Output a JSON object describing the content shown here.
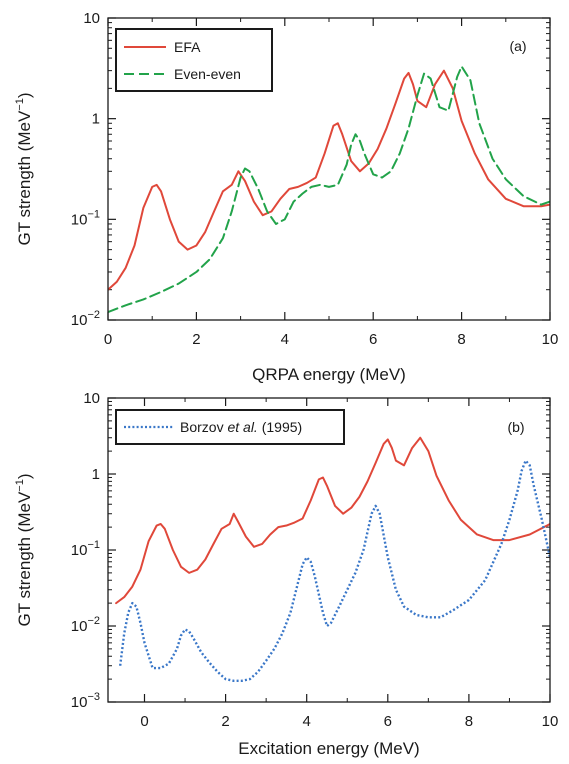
{
  "chart_data": [
    {
      "type": "line",
      "panel_label": "(a)",
      "xlabel": "QRPA energy (MeV)",
      "ylabel": "GT strength (MeV",
      "ylabel_sup": "−1",
      "ylabel_close": ")",
      "xlim": [
        0,
        10
      ],
      "ylim": [
        0.01,
        10
      ],
      "yscale": "log",
      "grid": false,
      "legend_position": "top-left",
      "x_ticks": [
        {
          "value": 0,
          "label": "0"
        },
        {
          "value": 2,
          "label": "2"
        },
        {
          "value": 4,
          "label": "4"
        },
        {
          "value": 6,
          "label": "6"
        },
        {
          "value": 8,
          "label": "8"
        },
        {
          "value": 10,
          "label": "10"
        }
      ],
      "y_ticks": [
        {
          "value": 0.01,
          "base": "10",
          "exp": "−2"
        },
        {
          "value": 0.1,
          "base": "10",
          "exp": "−1"
        },
        {
          "value": 1,
          "base": "1",
          "exp": ""
        },
        {
          "value": 10,
          "base": "10",
          "exp": ""
        }
      ],
      "series": [
        {
          "name": "EFA",
          "color": "#e0483a",
          "style": "solid",
          "x": [
            0,
            0.2,
            0.4,
            0.6,
            0.8,
            1.0,
            1.1,
            1.2,
            1.4,
            1.6,
            1.8,
            2.0,
            2.2,
            2.4,
            2.6,
            2.8,
            2.95,
            3.1,
            3.3,
            3.5,
            3.7,
            3.9,
            4.1,
            4.3,
            4.5,
            4.7,
            4.9,
            5.1,
            5.2,
            5.3,
            5.5,
            5.7,
            5.9,
            6.1,
            6.3,
            6.5,
            6.7,
            6.8,
            6.9,
            7.0,
            7.2,
            7.4,
            7.6,
            7.8,
            8.0,
            8.3,
            8.6,
            9.0,
            9.4,
            9.8,
            10.0
          ],
          "y": [
            0.02,
            0.024,
            0.033,
            0.055,
            0.13,
            0.21,
            0.22,
            0.19,
            0.1,
            0.06,
            0.05,
            0.055,
            0.075,
            0.12,
            0.19,
            0.22,
            0.3,
            0.24,
            0.15,
            0.11,
            0.12,
            0.16,
            0.2,
            0.21,
            0.23,
            0.26,
            0.45,
            0.85,
            0.9,
            0.7,
            0.38,
            0.3,
            0.36,
            0.5,
            0.8,
            1.4,
            2.5,
            2.85,
            2.2,
            1.5,
            1.3,
            2.2,
            3.0,
            2.0,
            0.95,
            0.45,
            0.25,
            0.16,
            0.135,
            0.135,
            0.14
          ]
        },
        {
          "name": "Even-even",
          "color": "#22a34a",
          "style": "dashed",
          "x": [
            0,
            0.4,
            0.8,
            1.2,
            1.6,
            2.0,
            2.3,
            2.6,
            2.8,
            3.0,
            3.1,
            3.2,
            3.4,
            3.6,
            3.8,
            4.0,
            4.2,
            4.4,
            4.6,
            4.8,
            5.0,
            5.2,
            5.4,
            5.5,
            5.6,
            5.7,
            5.8,
            6.0,
            6.2,
            6.4,
            6.6,
            6.8,
            7.0,
            7.15,
            7.3,
            7.5,
            7.7,
            7.9,
            8.0,
            8.2,
            8.4,
            8.7,
            9.0,
            9.4,
            9.8,
            10.0
          ],
          "y": [
            0.012,
            0.014,
            0.016,
            0.019,
            0.023,
            0.03,
            0.04,
            0.065,
            0.12,
            0.26,
            0.32,
            0.3,
            0.2,
            0.12,
            0.09,
            0.1,
            0.15,
            0.18,
            0.21,
            0.22,
            0.21,
            0.22,
            0.35,
            0.55,
            0.7,
            0.6,
            0.45,
            0.28,
            0.26,
            0.3,
            0.45,
            0.8,
            1.7,
            2.8,
            2.5,
            1.3,
            1.2,
            2.6,
            3.3,
            2.4,
            0.9,
            0.4,
            0.25,
            0.17,
            0.14,
            0.15
          ]
        }
      ]
    },
    {
      "type": "line",
      "panel_label": "(b)",
      "xlabel": "Excitation energy (MeV)",
      "ylabel": "GT strength (MeV",
      "ylabel_sup": "−1",
      "ylabel_close": ")",
      "xlim": [
        -0.9,
        10
      ],
      "ylim": [
        0.001,
        10
      ],
      "yscale": "log",
      "grid": false,
      "legend_position": "top-left",
      "x_ticks": [
        {
          "value": 0,
          "label": "0"
        },
        {
          "value": 2,
          "label": "2"
        },
        {
          "value": 4,
          "label": "4"
        },
        {
          "value": 6,
          "label": "6"
        },
        {
          "value": 8,
          "label": "8"
        },
        {
          "value": 10,
          "label": "10"
        }
      ],
      "y_ticks": [
        {
          "value": 0.001,
          "base": "10",
          "exp": "−3"
        },
        {
          "value": 0.01,
          "base": "10",
          "exp": "−2"
        },
        {
          "value": 0.1,
          "base": "10",
          "exp": "−1"
        },
        {
          "value": 1,
          "base": "1",
          "exp": ""
        },
        {
          "value": 10,
          "base": "10",
          "exp": ""
        }
      ],
      "series": [
        {
          "name": "",
          "color": "#e0483a",
          "style": "solid",
          "x": [
            -0.7,
            -0.5,
            -0.3,
            -0.1,
            0.1,
            0.3,
            0.4,
            0.5,
            0.7,
            0.9,
            1.1,
            1.3,
            1.5,
            1.7,
            1.9,
            2.1,
            2.2,
            2.3,
            2.5,
            2.7,
            2.9,
            3.1,
            3.3,
            3.5,
            3.7,
            3.9,
            4.1,
            4.3,
            4.4,
            4.5,
            4.7,
            4.9,
            5.1,
            5.3,
            5.5,
            5.7,
            5.9,
            6.0,
            6.1,
            6.2,
            6.4,
            6.6,
            6.8,
            7.0,
            7.2,
            7.5,
            7.8,
            8.2,
            8.6,
            9.0,
            9.5,
            10.0
          ],
          "y": [
            0.02,
            0.024,
            0.033,
            0.055,
            0.13,
            0.21,
            0.22,
            0.19,
            0.1,
            0.06,
            0.05,
            0.055,
            0.075,
            0.12,
            0.19,
            0.22,
            0.3,
            0.24,
            0.15,
            0.11,
            0.12,
            0.16,
            0.2,
            0.21,
            0.23,
            0.26,
            0.45,
            0.85,
            0.9,
            0.7,
            0.38,
            0.3,
            0.36,
            0.5,
            0.8,
            1.4,
            2.5,
            2.85,
            2.2,
            1.5,
            1.3,
            2.2,
            3.0,
            2.0,
            0.95,
            0.45,
            0.25,
            0.16,
            0.135,
            0.135,
            0.16,
            0.22
          ]
        },
        {
          "name": "Borzov et al. (1995)",
          "legend_parts": [
            "Borzov ",
            "et al.",
            " (1995)"
          ],
          "color": "#3a77c8",
          "style": "dotted",
          "x": [
            -0.6,
            -0.5,
            -0.4,
            -0.3,
            -0.2,
            -0.1,
            0.0,
            0.2,
            0.4,
            0.6,
            0.8,
            0.9,
            1.0,
            1.1,
            1.2,
            1.4,
            1.6,
            1.8,
            2.0,
            2.2,
            2.4,
            2.6,
            2.8,
            3.0,
            3.2,
            3.4,
            3.6,
            3.8,
            3.9,
            4.0,
            4.1,
            4.2,
            4.4,
            4.5,
            4.6,
            4.8,
            5.0,
            5.2,
            5.4,
            5.6,
            5.7,
            5.8,
            6.0,
            6.2,
            6.4,
            6.7,
            7.0,
            7.3,
            7.6,
            8.0,
            8.4,
            8.8,
            9.0,
            9.2,
            9.3,
            9.4,
            9.5,
            9.6,
            9.8,
            10.0
          ],
          "y": [
            0.003,
            0.008,
            0.015,
            0.02,
            0.018,
            0.011,
            0.006,
            0.0028,
            0.0028,
            0.0032,
            0.005,
            0.0075,
            0.009,
            0.0085,
            0.007,
            0.0045,
            0.0033,
            0.0025,
            0.002,
            0.0019,
            0.0019,
            0.002,
            0.0025,
            0.0035,
            0.005,
            0.008,
            0.015,
            0.04,
            0.065,
            0.08,
            0.07,
            0.045,
            0.015,
            0.01,
            0.011,
            0.018,
            0.03,
            0.05,
            0.1,
            0.3,
            0.38,
            0.3,
            0.08,
            0.03,
            0.018,
            0.014,
            0.013,
            0.013,
            0.016,
            0.022,
            0.04,
            0.12,
            0.25,
            0.6,
            1.1,
            1.5,
            1.3,
            0.7,
            0.25,
            0.08
          ]
        }
      ]
    }
  ]
}
